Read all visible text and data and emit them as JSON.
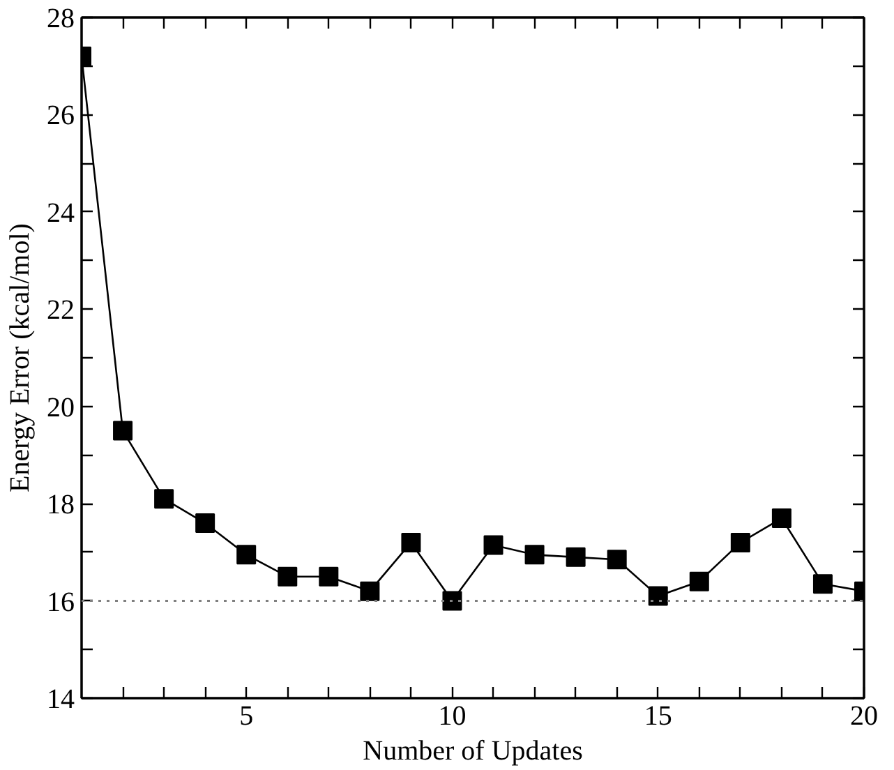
{
  "chart_data": {
    "type": "line",
    "xlabel": "Number of Updates",
    "ylabel": "Energy Error (kcal/mol)",
    "x": [
      1,
      2,
      3,
      4,
      5,
      6,
      7,
      8,
      9,
      10,
      11,
      12,
      13,
      14,
      15,
      16,
      17,
      18,
      19,
      20
    ],
    "series": [
      {
        "color": "#000000",
        "values": [
          27.2,
          19.5,
          18.1,
          17.6,
          16.95,
          16.5,
          16.5,
          16.2,
          17.2,
          16.0,
          17.15,
          16.95,
          16.9,
          16.85,
          16.1,
          16.4,
          17.2,
          17.7,
          16.35,
          16.2
        ]
      }
    ],
    "marker": "square",
    "line_style": "solid",
    "grid": false,
    "xlim": [
      1,
      20
    ],
    "ylim": [
      14,
      28
    ],
    "xticks": [
      {
        "value": 2,
        "label": null
      },
      {
        "value": 3,
        "label": null
      },
      {
        "value": 4,
        "label": null
      },
      5,
      {
        "value": 6,
        "label": null
      },
      {
        "value": 7,
        "label": null
      },
      {
        "value": 8,
        "label": null
      },
      {
        "value": 9,
        "label": null
      },
      10,
      {
        "value": 11,
        "label": null
      },
      {
        "value": 12,
        "label": null
      },
      {
        "value": 13,
        "label": null
      },
      {
        "value": 14,
        "label": null
      },
      15,
      {
        "value": 16,
        "label": null
      },
      {
        "value": 17,
        "label": null
      },
      {
        "value": 18,
        "label": null
      },
      {
        "value": 19,
        "label": null
      },
      20
    ],
    "yticks": [
      14,
      {
        "value": 15,
        "label": null
      },
      16,
      {
        "value": 17,
        "label": null
      },
      18,
      {
        "value": 19,
        "label": null
      },
      20,
      {
        "value": 21,
        "label": null
      },
      22,
      {
        "value": 23,
        "label": null
      },
      24,
      {
        "value": 25,
        "label": null
      },
      26,
      {
        "value": 27,
        "label": null
      },
      28
    ],
    "ref_lines": [
      {
        "axis": "y",
        "value": 16,
        "color": "#808080",
        "line_style": "dotted"
      }
    ]
  }
}
